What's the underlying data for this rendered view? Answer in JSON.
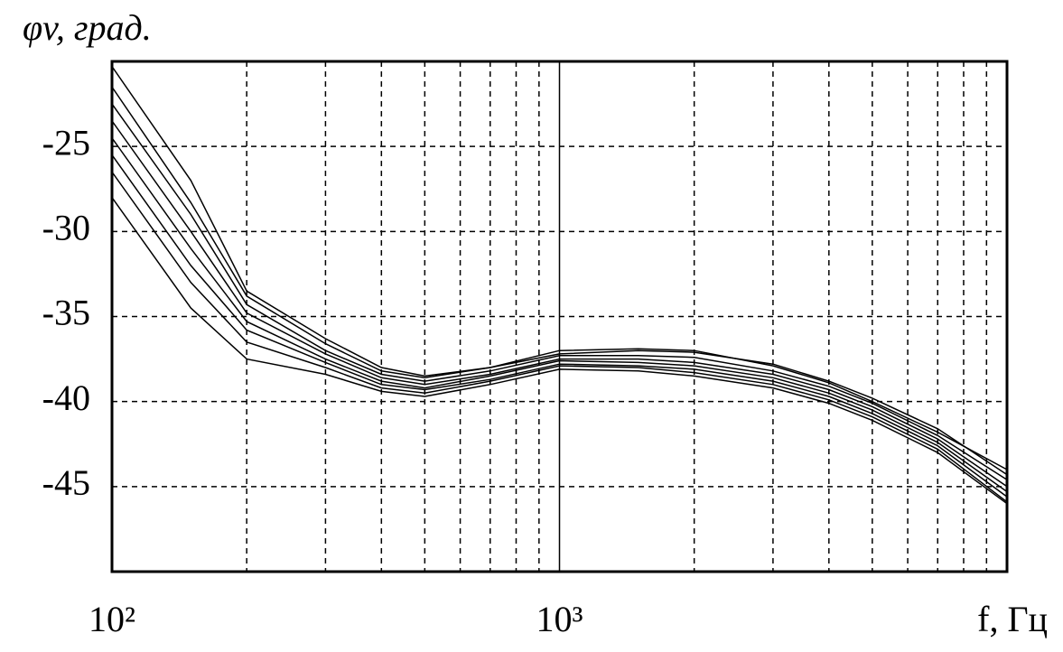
{
  "chart_data": {
    "type": "line",
    "ylabel": "φv, град.",
    "xlabel": "f, Гц",
    "xscale": "log",
    "grid": true,
    "x": [
      100,
      150,
      200,
      300,
      400,
      500,
      700,
      1000,
      1500,
      2000,
      3000,
      4000,
      5000,
      7000,
      10000
    ],
    "xlim": [
      100,
      10000
    ],
    "xticks": [
      {
        "value": 100,
        "label": "10²"
      },
      {
        "value": 1000,
        "label": "10³"
      }
    ],
    "x_minor_ticks": [
      200,
      300,
      400,
      500,
      600,
      700,
      800,
      900,
      2000,
      3000,
      4000,
      5000,
      6000,
      7000,
      8000,
      9000
    ],
    "ylim": [
      -50,
      -20
    ],
    "yticks": [
      -25,
      -30,
      -35,
      -40,
      -45
    ],
    "series": [
      {
        "color": "#000000",
        "values": [
          -20.3,
          -27,
          -33.5,
          -36.3,
          -38.0,
          -38.5,
          -38.0,
          -37.2,
          -37.0,
          -37.1,
          -37.8,
          -38.8,
          -39.8,
          -41.6,
          -44.3
        ]
      },
      {
        "color": "#000000",
        "values": [
          -21.5,
          -28.3,
          -33.8,
          -36.6,
          -38.2,
          -38.6,
          -38.0,
          -37.0,
          -36.9,
          -37.0,
          -37.9,
          -38.9,
          -40.0,
          -41.8,
          -44.0
        ]
      },
      {
        "color": "#000000",
        "values": [
          -22.5,
          -29.0,
          -34.3,
          -37.0,
          -38.4,
          -38.8,
          -38.2,
          -37.3,
          -37.3,
          -37.4,
          -38.2,
          -39.1,
          -40.1,
          -42.0,
          -44.6
        ]
      },
      {
        "color": "#000000",
        "values": [
          -23.5,
          -30.0,
          -34.8,
          -37.2,
          -38.6,
          -39.0,
          -38.4,
          -37.5,
          -37.5,
          -37.7,
          -38.4,
          -39.3,
          -40.3,
          -42.2,
          -45.0
        ]
      },
      {
        "color": "#000000",
        "values": [
          -24.5,
          -31.0,
          -35.3,
          -37.5,
          -38.8,
          -39.2,
          -38.5,
          -37.6,
          -37.7,
          -37.9,
          -38.6,
          -39.5,
          -40.5,
          -42.4,
          -45.3
        ]
      },
      {
        "color": "#000000",
        "values": [
          -25.5,
          -32.0,
          -35.8,
          -37.7,
          -39.0,
          -39.3,
          -38.7,
          -37.8,
          -37.9,
          -38.1,
          -38.8,
          -39.7,
          -40.7,
          -42.6,
          -45.6
        ]
      },
      {
        "color": "#000000",
        "values": [
          -26.5,
          -33.0,
          -36.5,
          -38.0,
          -39.2,
          -39.5,
          -38.8,
          -37.9,
          -38.0,
          -38.3,
          -39.0,
          -39.9,
          -40.9,
          -42.8,
          -45.9
        ]
      },
      {
        "color": "#000000",
        "values": [
          -28.0,
          -34.5,
          -37.5,
          -38.4,
          -39.4,
          -39.7,
          -39.0,
          -38.1,
          -38.2,
          -38.5,
          -39.2,
          -40.1,
          -41.1,
          -43.0,
          -46.0
        ]
      }
    ]
  }
}
